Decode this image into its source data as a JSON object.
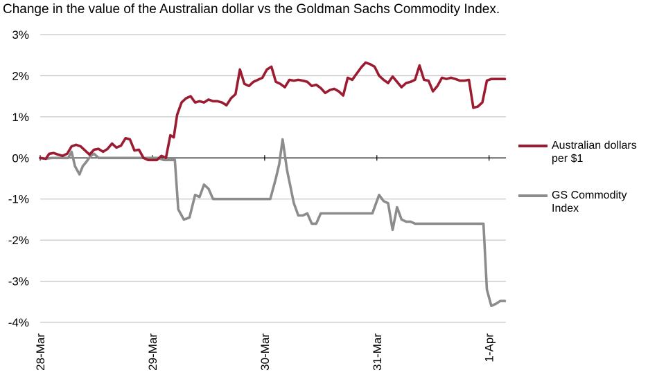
{
  "chart_data": {
    "type": "line",
    "title": "Change in the value of the Australian dollar vs the Goldman Sachs Commodity Index.",
    "xlabel": "",
    "ylabel": "",
    "ylim": [
      -4,
      3
    ],
    "yticks": [
      3,
      2,
      1,
      0,
      -1,
      -2,
      -3,
      -4
    ],
    "ytick_labels": [
      "3%",
      "2%",
      "1%",
      "0%",
      "-1%",
      "-2%",
      "-3%",
      "-4%"
    ],
    "x_unit": "days from 28-Mar",
    "xlim": [
      0,
      4.15
    ],
    "xticks": [
      0,
      1,
      2,
      3,
      4
    ],
    "xtick_labels": [
      "28-Mar",
      "29-Mar",
      "30-Mar",
      "31-Mar",
      "1-Apr"
    ],
    "grid": "horizontal",
    "legend_position": "right",
    "series": [
      {
        "name": "Australian dollars per $1",
        "color": "#9b1b30",
        "x": [
          0,
          0.05,
          0.08,
          0.12,
          0.16,
          0.2,
          0.24,
          0.28,
          0.32,
          0.36,
          0.4,
          0.44,
          0.48,
          0.52,
          0.56,
          0.6,
          0.64,
          0.68,
          0.72,
          0.76,
          0.8,
          0.84,
          0.88,
          0.92,
          0.96,
          1.0,
          1.04,
          1.08,
          1.12,
          1.16,
          1.19,
          1.22,
          1.26,
          1.3,
          1.34,
          1.38,
          1.42,
          1.46,
          1.5,
          1.54,
          1.58,
          1.62,
          1.66,
          1.7,
          1.74,
          1.78,
          1.82,
          1.86,
          1.9,
          1.94,
          1.98,
          2.02,
          2.06,
          2.1,
          2.14,
          2.18,
          2.22,
          2.26,
          2.3,
          2.34,
          2.38,
          2.42,
          2.46,
          2.5,
          2.54,
          2.58,
          2.62,
          2.66,
          2.7,
          2.74,
          2.78,
          2.82,
          2.86,
          2.9,
          2.94,
          2.98,
          3.02,
          3.06,
          3.1,
          3.14,
          3.18,
          3.22,
          3.26,
          3.3,
          3.34,
          3.38,
          3.42,
          3.46,
          3.5,
          3.54,
          3.58,
          3.62,
          3.66,
          3.7,
          3.74,
          3.78,
          3.82,
          3.86,
          3.9,
          3.94,
          3.98,
          4.02,
          4.06,
          4.1,
          4.14
        ],
        "y": [
          0.0,
          -0.02,
          0.1,
          0.12,
          0.08,
          0.05,
          0.1,
          0.28,
          0.32,
          0.28,
          0.18,
          0.08,
          0.2,
          0.22,
          0.15,
          0.22,
          0.35,
          0.25,
          0.3,
          0.48,
          0.45,
          0.18,
          0.2,
          0.0,
          -0.05,
          -0.05,
          -0.05,
          0.05,
          0.0,
          0.55,
          0.5,
          1.05,
          1.35,
          1.45,
          1.5,
          1.35,
          1.38,
          1.35,
          1.42,
          1.38,
          1.38,
          1.35,
          1.28,
          1.45,
          1.55,
          2.15,
          1.8,
          1.75,
          1.85,
          1.9,
          1.95,
          2.15,
          2.22,
          1.85,
          1.8,
          1.72,
          1.9,
          1.88,
          1.9,
          1.88,
          1.85,
          1.75,
          1.78,
          1.7,
          1.58,
          1.65,
          1.68,
          1.62,
          1.52,
          1.95,
          1.9,
          2.05,
          2.2,
          2.32,
          2.28,
          2.22,
          2.0,
          1.9,
          1.82,
          1.98,
          1.85,
          1.72,
          1.82,
          1.85,
          1.9,
          2.25,
          1.9,
          1.88,
          1.62,
          1.75,
          1.95,
          1.92,
          1.95,
          1.92,
          1.88,
          1.88,
          1.9,
          1.22,
          1.25,
          1.35,
          1.88,
          1.92,
          1.92,
          1.92,
          1.92
        ],
        "_comment": "values in percent"
      },
      {
        "name": "GS Commodity Index",
        "color": "#8c8c8c",
        "x": [
          0,
          0.05,
          0.1,
          0.15,
          0.2,
          0.25,
          0.28,
          0.31,
          0.35,
          0.38,
          0.41,
          0.45,
          0.48,
          0.52,
          0.55,
          0.6,
          0.65,
          0.7,
          0.8,
          0.9,
          1.0,
          1.05,
          1.1,
          1.15,
          1.2,
          1.23,
          1.28,
          1.33,
          1.38,
          1.42,
          1.46,
          1.5,
          1.54,
          1.58,
          1.62,
          1.66,
          1.7,
          1.8,
          1.9,
          2.0,
          2.05,
          2.1,
          2.13,
          2.16,
          2.2,
          2.26,
          2.3,
          2.34,
          2.38,
          2.42,
          2.46,
          2.5,
          2.6,
          2.7,
          2.8,
          2.9,
          2.96,
          3.02,
          3.06,
          3.1,
          3.14,
          3.18,
          3.22,
          3.26,
          3.3,
          3.34,
          3.38,
          3.42,
          3.5,
          3.6,
          3.7,
          3.8,
          3.9,
          3.95,
          3.98,
          4.02,
          4.06,
          4.1,
          4.14
        ],
        "y": [
          0.0,
          -0.02,
          0.0,
          0.0,
          0.0,
          0.0,
          0.15,
          -0.2,
          -0.4,
          -0.2,
          -0.1,
          0.05,
          0.1,
          0.0,
          0.0,
          0.0,
          0.0,
          0.0,
          0.0,
          0.0,
          0.0,
          0.0,
          -0.05,
          -0.05,
          -0.05,
          -1.25,
          -1.5,
          -1.45,
          -0.9,
          -0.95,
          -0.65,
          -0.75,
          -1.0,
          -1.0,
          -1.0,
          -1.0,
          -1.0,
          -1.0,
          -1.0,
          -1.0,
          -1.0,
          -0.5,
          -0.15,
          0.45,
          -0.3,
          -1.1,
          -1.4,
          -1.4,
          -1.35,
          -1.6,
          -1.6,
          -1.35,
          -1.35,
          -1.35,
          -1.35,
          -1.35,
          -1.35,
          -0.9,
          -1.05,
          -1.1,
          -1.75,
          -1.2,
          -1.5,
          -1.55,
          -1.55,
          -1.6,
          -1.6,
          -1.6,
          -1.6,
          -1.6,
          -1.6,
          -1.6,
          -1.6,
          -1.6,
          -3.2,
          -3.6,
          -3.55,
          -3.48,
          -3.48
        ],
        "_comment": "values in percent"
      }
    ]
  }
}
